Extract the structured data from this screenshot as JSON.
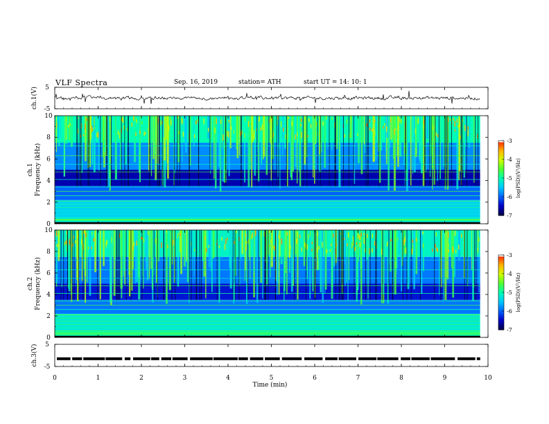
{
  "header": {
    "title": "VLF  Spectra",
    "date": "Sep. 16, 2019",
    "station": "station= ATH",
    "start": "start  UT  =    14: 10: 1"
  },
  "chart_data": [
    {
      "type": "line",
      "panel": "ch1-waveform",
      "ylabel": "ch.1(V)",
      "ylim": [
        -5,
        5
      ],
      "yticks": [
        "5",
        "-5"
      ],
      "xlim": [
        0,
        10
      ],
      "approx_baseline_V": 0,
      "approx_amplitude_V": 1,
      "data_extent_min": 9.82
    },
    {
      "type": "heatmap",
      "panel": "ch1-spectrogram",
      "ylabel": "ch.1\nFrequency (kHz)",
      "ylim": [
        0,
        10
      ],
      "yticks": [
        "0",
        "2",
        "4",
        "6",
        "8",
        "10"
      ],
      "xlim": [
        0,
        10
      ],
      "colorbar": {
        "label": "log(PSD)(V²/Hz)",
        "range": [
          -7,
          -3
        ],
        "ticks": [
          "-3",
          "-4",
          "-5",
          "-6",
          "-7"
        ]
      },
      "approx_mean_logPSD_by_band": [
        {
          "band_kHz": [
            0,
            0.6
          ],
          "value": -5.2
        },
        {
          "band_kHz": [
            0.6,
            2.2
          ],
          "value": -5.4
        },
        {
          "band_kHz": [
            2.2,
            3.5
          ],
          "value": -6.0
        },
        {
          "band_kHz": [
            3.5,
            5.0
          ],
          "value": -6.6
        },
        {
          "band_kHz": [
            5.0,
            7.5
          ],
          "value": -5.8
        },
        {
          "band_kHz": [
            7.5,
            10
          ],
          "value": -5.0
        }
      ]
    },
    {
      "type": "heatmap",
      "panel": "ch2-spectrogram",
      "ylabel": "ch.2\nFrequency (kHz)",
      "ylim": [
        0,
        10
      ],
      "yticks": [
        "0",
        "2",
        "4",
        "6",
        "8",
        "10"
      ],
      "xlim": [
        0,
        10
      ],
      "colorbar": {
        "label": "log(PSD)(V²/Hz)",
        "range": [
          -7,
          -3
        ],
        "ticks": [
          "-3",
          "-4",
          "-5",
          "-6",
          "-7"
        ]
      },
      "approx_mean_logPSD_by_band": [
        {
          "band_kHz": [
            0,
            0.6
          ],
          "value": -5.0
        },
        {
          "band_kHz": [
            0.6,
            2.2
          ],
          "value": -5.2
        },
        {
          "band_kHz": [
            2.2,
            3.5
          ],
          "value": -5.9
        },
        {
          "band_kHz": [
            3.5,
            5.0
          ],
          "value": -6.4
        },
        {
          "band_kHz": [
            5.0,
            7.5
          ],
          "value": -5.9
        },
        {
          "band_kHz": [
            7.5,
            10
          ],
          "value": -5.1
        }
      ]
    },
    {
      "type": "line",
      "panel": "ch3-waveform",
      "ylabel": "ch.3(V)",
      "ylim": [
        -5,
        5
      ],
      "yticks": [
        "5",
        "-5"
      ],
      "xlim": [
        0,
        10
      ],
      "xticks": [
        "0",
        "1",
        "2",
        "3",
        "4",
        "5",
        "6",
        "7",
        "8",
        "9",
        "10"
      ],
      "xlabel": "Time  (min)",
      "approx_level_V": -1.5,
      "data_extent_min": 9.82
    }
  ],
  "colors": {
    "colormap": [
      "#00004a",
      "#0000c8",
      "#0064ff",
      "#00c8ff",
      "#00ffb4",
      "#50ff32",
      "#d2ff00",
      "#ffb400",
      "#ff2800",
      "#ffffff"
    ]
  }
}
